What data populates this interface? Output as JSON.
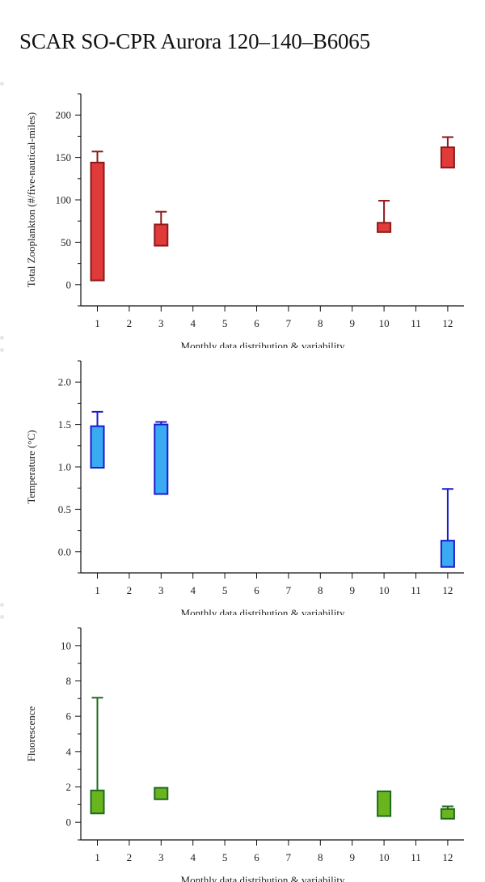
{
  "title": "SCAR SO-CPR Aurora 120–140–B6065",
  "chart_data": [
    {
      "type": "box",
      "xlabel": "Monthly data distribution & variability",
      "ylabel": "Total Zooplankton (#/five-nautical-miles)",
      "categories": [
        1,
        2,
        3,
        4,
        5,
        6,
        7,
        8,
        9,
        10,
        11,
        12
      ],
      "ylim": [
        -25,
        225
      ],
      "yticks": [
        0,
        50,
        100,
        150,
        200
      ],
      "fill": "#e03a3a",
      "stroke": "#8b1a1a",
      "boxes": [
        {
          "month": 1,
          "low": 5,
          "high": 144,
          "whisker": 157
        },
        {
          "month": 3,
          "low": 46,
          "high": 71,
          "whisker": 86
        },
        {
          "month": 10,
          "low": 62,
          "high": 73,
          "whisker": 99
        },
        {
          "month": 12,
          "low": 138,
          "high": 162,
          "whisker": 174
        }
      ]
    },
    {
      "type": "box",
      "xlabel": "Monthly data distribution & variability",
      "ylabel": "Temperature (°C)",
      "categories": [
        1,
        2,
        3,
        4,
        5,
        6,
        7,
        8,
        9,
        10,
        11,
        12
      ],
      "ylim": [
        -0.25,
        2.25
      ],
      "yticks": [
        "0.0",
        "0.5",
        "1.0",
        "1.5",
        "2.0"
      ],
      "fill": "#3aaaf2",
      "stroke": "#1a1acc",
      "boxes": [
        {
          "month": 1,
          "low": 0.99,
          "high": 1.48,
          "whisker": 1.65
        },
        {
          "month": 3,
          "low": 0.68,
          "high": 1.5,
          "whisker": 1.53
        },
        {
          "month": 12,
          "low": -0.18,
          "high": 0.13,
          "whisker": 0.74
        }
      ]
    },
    {
      "type": "box",
      "xlabel": "Monthly data distribution & variability",
      "ylabel": "Fluorescence",
      "categories": [
        1,
        2,
        3,
        4,
        5,
        6,
        7,
        8,
        9,
        10,
        11,
        12
      ],
      "ylim": [
        -1,
        11
      ],
      "yticks": [
        0,
        2,
        4,
        6,
        8,
        10
      ],
      "fill": "#6ab41e",
      "stroke": "#1e6a1e",
      "boxes": [
        {
          "month": 1,
          "low": 0.5,
          "high": 1.8,
          "whisker": 7.05
        },
        {
          "month": 3,
          "low": 1.3,
          "high": 1.95,
          "whisker": null
        },
        {
          "month": 10,
          "low": 0.35,
          "high": 1.75,
          "whisker": null
        },
        {
          "month": 12,
          "low": 0.2,
          "high": 0.75,
          "whisker": 0.9
        }
      ]
    }
  ]
}
